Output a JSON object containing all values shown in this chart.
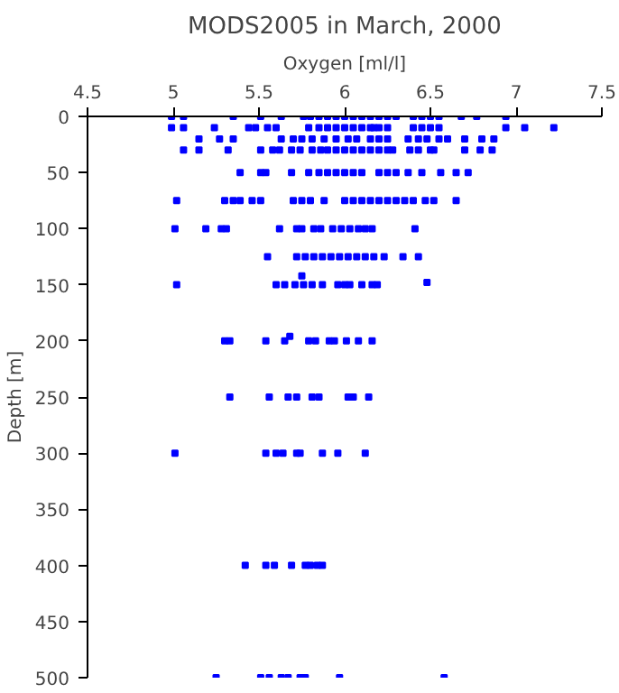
{
  "chart_data": {
    "type": "scatter",
    "title": "MODS2005 in March, 2000",
    "xlabel": "Oxygen [ml/l]",
    "ylabel": "Depth [m]",
    "xlim": [
      4.5,
      7.5
    ],
    "xticks": [
      4.5,
      5,
      5.5,
      6,
      6.5,
      7,
      7.5
    ],
    "ylim": [
      500,
      0
    ],
    "yticks": [
      0,
      50,
      100,
      150,
      200,
      250,
      300,
      350,
      400,
      450,
      500
    ],
    "grid": false,
    "marker": "square",
    "series": [
      {
        "color": "#0000ff",
        "x": [
          4.99,
          5.06,
          5.35,
          5.51,
          5.63,
          5.76,
          5.8,
          5.85,
          5.9,
          5.95,
          6.0,
          6.05,
          6.1,
          6.15,
          6.2,
          6.25,
          6.3,
          6.4,
          6.45,
          6.5,
          6.55,
          6.68,
          6.77,
          6.94,
          4.99,
          5.06,
          5.24,
          5.44,
          5.48,
          5.55,
          5.6,
          5.79,
          5.85,
          5.9,
          5.95,
          6.0,
          6.05,
          6.1,
          6.15,
          6.17,
          6.2,
          6.25,
          6.4,
          6.45,
          6.5,
          6.55,
          6.94,
          7.05,
          7.22,
          5.15,
          5.27,
          5.35,
          5.63,
          5.7,
          5.75,
          5.81,
          5.88,
          5.95,
          6.02,
          6.07,
          6.15,
          6.2,
          6.25,
          6.37,
          6.43,
          6.48,
          6.55,
          6.6,
          6.7,
          6.8,
          6.87,
          5.06,
          5.15,
          5.32,
          5.51,
          5.58,
          5.62,
          5.69,
          5.74,
          5.81,
          5.86,
          5.9,
          5.95,
          6.0,
          6.05,
          6.1,
          6.15,
          6.2,
          6.25,
          6.28,
          6.38,
          6.43,
          6.5,
          6.52,
          6.7,
          6.79,
          6.86,
          5.39,
          5.51,
          5.54,
          5.69,
          5.79,
          5.85,
          5.9,
          5.95,
          6.0,
          6.05,
          6.1,
          6.2,
          6.25,
          6.3,
          6.37,
          6.45,
          6.56,
          6.65,
          6.72,
          5.02,
          5.3,
          5.35,
          5.39,
          5.46,
          5.51,
          5.7,
          5.75,
          5.8,
          5.88,
          6.0,
          6.05,
          6.1,
          6.15,
          6.2,
          6.25,
          6.3,
          6.35,
          6.4,
          6.47,
          6.52,
          6.65,
          5.01,
          5.19,
          5.28,
          5.31,
          5.62,
          5.72,
          5.75,
          5.82,
          5.86,
          5.93,
          5.98,
          6.03,
          6.08,
          6.12,
          6.16,
          6.41,
          5.55,
          5.72,
          5.77,
          5.82,
          5.87,
          5.92,
          5.97,
          6.02,
          6.07,
          6.12,
          6.17,
          6.23,
          6.34,
          6.43,
          5.02,
          5.6,
          5.65,
          5.71,
          5.76,
          5.81,
          5.87,
          5.96,
          6.0,
          6.03,
          6.1,
          6.16,
          6.19,
          6.48,
          5.75,
          5.3,
          5.33,
          5.54,
          5.65,
          5.68,
          5.79,
          5.83,
          5.91,
          5.94,
          6.01,
          6.08,
          6.16,
          5.33,
          5.56,
          5.67,
          5.72,
          5.81,
          5.85,
          6.02,
          6.05,
          6.14,
          5.01,
          5.54,
          5.6,
          5.64,
          5.72,
          5.74,
          5.87,
          5.96,
          6.12,
          5.42,
          5.54,
          5.59,
          5.69,
          5.77,
          5.8,
          5.84,
          5.87,
          5.25,
          5.51,
          5.56,
          5.63,
          5.67,
          5.74,
          5.77,
          5.97,
          6.58
        ],
        "values": [
          0,
          0,
          0,
          0,
          0,
          0,
          0,
          0,
          0,
          0,
          0,
          0,
          0,
          0,
          0,
          0,
          0,
          0,
          0,
          0,
          0,
          0,
          0,
          0,
          10,
          10,
          10,
          10,
          10,
          10,
          10,
          10,
          10,
          10,
          10,
          10,
          10,
          10,
          10,
          10,
          10,
          10,
          10,
          10,
          10,
          10,
          10,
          10,
          10,
          20,
          20,
          20,
          20,
          20,
          20,
          20,
          20,
          20,
          20,
          20,
          20,
          20,
          20,
          20,
          20,
          20,
          20,
          20,
          20,
          20,
          20,
          30,
          30,
          30,
          30,
          30,
          30,
          30,
          30,
          30,
          30,
          30,
          30,
          30,
          30,
          30,
          30,
          30,
          30,
          30,
          30,
          30,
          30,
          30,
          30,
          30,
          30,
          50,
          50,
          50,
          50,
          50,
          50,
          50,
          50,
          50,
          50,
          50,
          50,
          50,
          50,
          50,
          50,
          50,
          50,
          50,
          75,
          75,
          75,
          75,
          75,
          75,
          75,
          75,
          75,
          75,
          75,
          75,
          75,
          75,
          75,
          75,
          75,
          75,
          75,
          75,
          75,
          75,
          100,
          100,
          100,
          100,
          100,
          100,
          100,
          100,
          100,
          100,
          100,
          100,
          100,
          100,
          100,
          100,
          125,
          125,
          125,
          125,
          125,
          125,
          125,
          125,
          125,
          125,
          125,
          125,
          125,
          125,
          150,
          150,
          150,
          150,
          150,
          150,
          150,
          150,
          150,
          150,
          150,
          150,
          150,
          148,
          142,
          200,
          200,
          200,
          200,
          196,
          200,
          200,
          200,
          200,
          200,
          200,
          200,
          250,
          250,
          250,
          250,
          250,
          250,
          250,
          250,
          250,
          300,
          300,
          300,
          300,
          300,
          300,
          300,
          300,
          300,
          400,
          400,
          400,
          400,
          400,
          400,
          400,
          400,
          500,
          500,
          500,
          500,
          500,
          500,
          500,
          500,
          500
        ]
      }
    ]
  }
}
